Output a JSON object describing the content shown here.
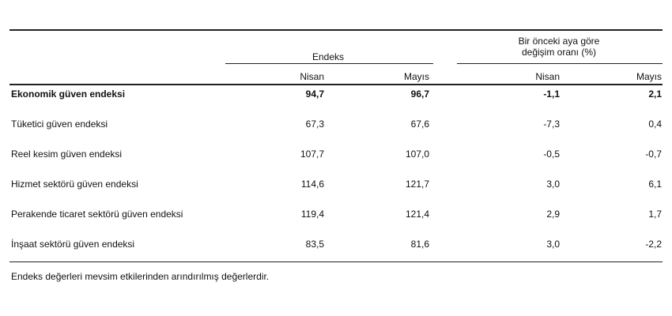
{
  "table": {
    "group_headers": [
      "Endeks",
      "Bir önceki aya göre değişim oranı (%)"
    ],
    "subheaders": [
      "Nisan",
      "Mayıs",
      "Nisan",
      "Mayıs"
    ],
    "rows": [
      [
        "Ekonomik güven endeksi",
        "94,7",
        "96,7",
        "-1,1",
        "2,1"
      ],
      [
        "Tüketici güven endeksi",
        "67,3",
        "67,6",
        "-7,3",
        "0,4"
      ],
      [
        "Reel kesim güven endeksi",
        "107,7",
        "107,0",
        "-0,5",
        "-0,7"
      ],
      [
        "Hizmet sektörü güven endeksi",
        "114,6",
        "121,7",
        "3,0",
        "6,1"
      ],
      [
        "Perakende ticaret sektörü güven endeksi",
        "119,4",
        "121,4",
        "2,9",
        "1,7"
      ],
      [
        "İnşaat sektörü güven endeksi",
        "83,5",
        "81,6",
        "3,0",
        "-2,2"
      ]
    ],
    "footnote": "Endeks değerleri mevsim etkilerinden arındırılmış değerlerdir."
  }
}
